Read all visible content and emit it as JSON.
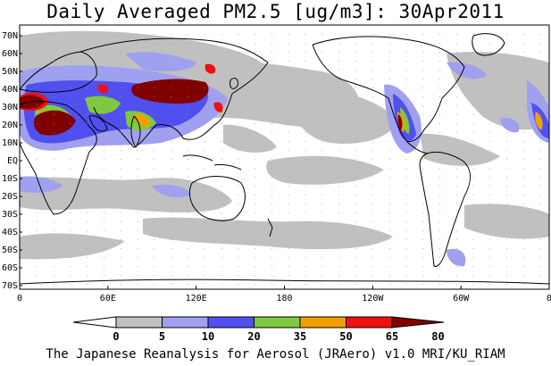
{
  "title": "Daily Averaged PM2.5 [ug/m3]: 30Apr2011",
  "footer": "The Japanese Reanalysis for Aerosol (JRAero) v1.0 MRI/KU_RIAM",
  "map": {
    "lat_labels": [
      "70N",
      "60N",
      "50N",
      "40N",
      "30N",
      "20N",
      "10N",
      "EQ",
      "10S",
      "20S",
      "30S",
      "40S",
      "50S",
      "60S",
      "70S"
    ],
    "lon_labels": [
      "0",
      "60E",
      "120E",
      "180",
      "120W",
      "60W",
      "0"
    ]
  },
  "colorbar": {
    "levels": [
      "0",
      "5",
      "10",
      "20",
      "35",
      "50",
      "65",
      "80"
    ],
    "colors": [
      "#ffffff",
      "#c0c0c0",
      "#a0a0f0",
      "#5050f0",
      "#80c840",
      "#f0a000",
      "#f01010",
      "#800000"
    ]
  }
}
